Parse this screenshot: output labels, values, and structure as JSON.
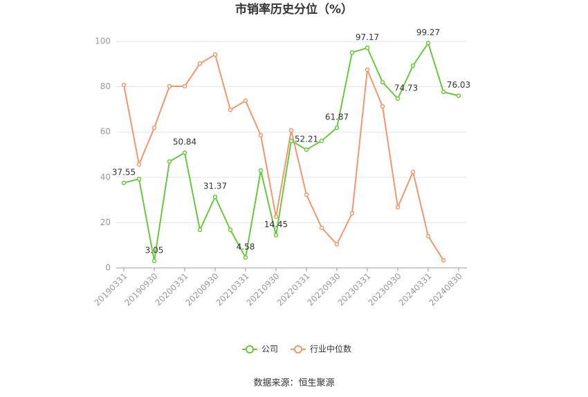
{
  "chart_data": {
    "type": "line",
    "title": "市销率历史分位（%）",
    "categories": [
      "20190331",
      null,
      "20190930",
      null,
      "20200331",
      null,
      "20200930",
      null,
      "20210331",
      null,
      "20210930",
      null,
      "20220331",
      null,
      "20220930",
      null,
      "20230331",
      null,
      "20230930",
      null,
      "20240331",
      null,
      "20240830"
    ],
    "series": [
      {
        "name": "公司",
        "color": "#66c93a",
        "values": [
          37.55,
          39.3,
          3.05,
          47.0,
          50.84,
          16.8,
          31.37,
          16.8,
          4.58,
          43.0,
          14.45,
          56.1,
          52.21,
          56.1,
          61.87,
          95.1,
          97.17,
          82.0,
          74.73,
          89.3,
          99.27,
          77.7,
          76.03
        ],
        "value_labels": [
          "37.55",
          null,
          "3.05",
          null,
          "50.84",
          null,
          "31.37",
          null,
          "4.58",
          null,
          "14.45",
          null,
          "52.21",
          null,
          "61.87",
          null,
          "97.17",
          null,
          "74.73",
          null,
          "99.27",
          null,
          "76.03"
        ]
      },
      {
        "name": "行业中位数",
        "color": "#f4956b",
        "values": [
          80.8,
          45.7,
          61.9,
          80.2,
          80.2,
          90.2,
          94.2,
          69.8,
          73.8,
          58.5,
          22.6,
          60.7,
          32.3,
          17.7,
          10.4,
          24.1,
          87.5,
          71.3,
          26.8,
          42.4,
          14.0,
          3.4,
          null
        ]
      }
    ],
    "ylim": [
      0,
      100
    ],
    "yticks": [
      0,
      20,
      40,
      60,
      80,
      100
    ],
    "grid": true,
    "legend": "bottom",
    "source": "数据来源：恒生聚源"
  }
}
